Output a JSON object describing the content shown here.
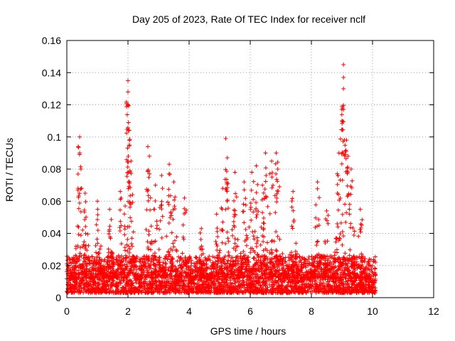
{
  "chart_data": {
    "type": "scatter",
    "title": "Day 205 of 2023, Rate Of TEC Index for receiver nclf",
    "xlabel": "GPS time / hours",
    "ylabel": "ROTI / TECUs",
    "xlim": [
      0,
      12
    ],
    "ylim": [
      0,
      0.16
    ],
    "x_ticks": [
      0,
      2,
      4,
      6,
      8,
      10,
      12
    ],
    "x_tick_labels": [
      "0",
      "2",
      "4",
      "6",
      "8",
      "10",
      "12"
    ],
    "y_ticks": [
      0,
      0.02,
      0.04,
      0.06,
      0.08,
      0.1,
      0.12,
      0.14,
      0.16
    ],
    "y_tick_labels": [
      "0",
      "0.02",
      "0.04",
      "0.06",
      "0.08",
      "0.1",
      "0.12",
      "0.14",
      "0.16"
    ],
    "grid": true,
    "marker": "+",
    "series": [
      {
        "name": "ROTI",
        "color": "#ff0000",
        "description": "dense band 0.005-0.025 TECU/s from 0 to 10.1 h with scattered spikes",
        "peaks": [
          {
            "x": 0.42,
            "y": 0.1
          },
          {
            "x": 0.42,
            "y": 0.09
          },
          {
            "x": 0.6,
            "y": 0.065
          },
          {
            "x": 1.0,
            "y": 0.06
          },
          {
            "x": 1.4,
            "y": 0.055
          },
          {
            "x": 1.75,
            "y": 0.066
          },
          {
            "x": 2.0,
            "y": 0.135
          },
          {
            "x": 2.0,
            "y": 0.128
          },
          {
            "x": 2.0,
            "y": 0.12
          },
          {
            "x": 2.02,
            "y": 0.104
          },
          {
            "x": 2.05,
            "y": 0.095
          },
          {
            "x": 2.1,
            "y": 0.085
          },
          {
            "x": 2.65,
            "y": 0.094
          },
          {
            "x": 2.7,
            "y": 0.088
          },
          {
            "x": 2.9,
            "y": 0.07
          },
          {
            "x": 3.1,
            "y": 0.076
          },
          {
            "x": 3.35,
            "y": 0.083
          },
          {
            "x": 3.5,
            "y": 0.072
          },
          {
            "x": 3.85,
            "y": 0.062
          },
          {
            "x": 4.4,
            "y": 0.043
          },
          {
            "x": 4.9,
            "y": 0.052
          },
          {
            "x": 5.1,
            "y": 0.068
          },
          {
            "x": 5.2,
            "y": 0.099
          },
          {
            "x": 5.25,
            "y": 0.087
          },
          {
            "x": 5.5,
            "y": 0.078
          },
          {
            "x": 5.8,
            "y": 0.072
          },
          {
            "x": 6.05,
            "y": 0.078
          },
          {
            "x": 6.2,
            "y": 0.082
          },
          {
            "x": 6.4,
            "y": 0.07
          },
          {
            "x": 6.5,
            "y": 0.09
          },
          {
            "x": 6.7,
            "y": 0.085
          },
          {
            "x": 6.85,
            "y": 0.09
          },
          {
            "x": 6.9,
            "y": 0.08
          },
          {
            "x": 7.4,
            "y": 0.066
          },
          {
            "x": 8.2,
            "y": 0.072
          },
          {
            "x": 8.5,
            "y": 0.054
          },
          {
            "x": 8.9,
            "y": 0.09
          },
          {
            "x": 9.0,
            "y": 0.11
          },
          {
            "x": 9.05,
            "y": 0.145
          },
          {
            "x": 9.05,
            "y": 0.137
          },
          {
            "x": 9.05,
            "y": 0.13
          },
          {
            "x": 9.15,
            "y": 0.098
          },
          {
            "x": 9.2,
            "y": 0.088
          },
          {
            "x": 9.3,
            "y": 0.08
          },
          {
            "x": 9.6,
            "y": 0.055
          }
        ],
        "band": {
          "x_start": 0.0,
          "x_end": 10.1,
          "y_min": 0.003,
          "y_max": 0.026
        }
      }
    ]
  }
}
